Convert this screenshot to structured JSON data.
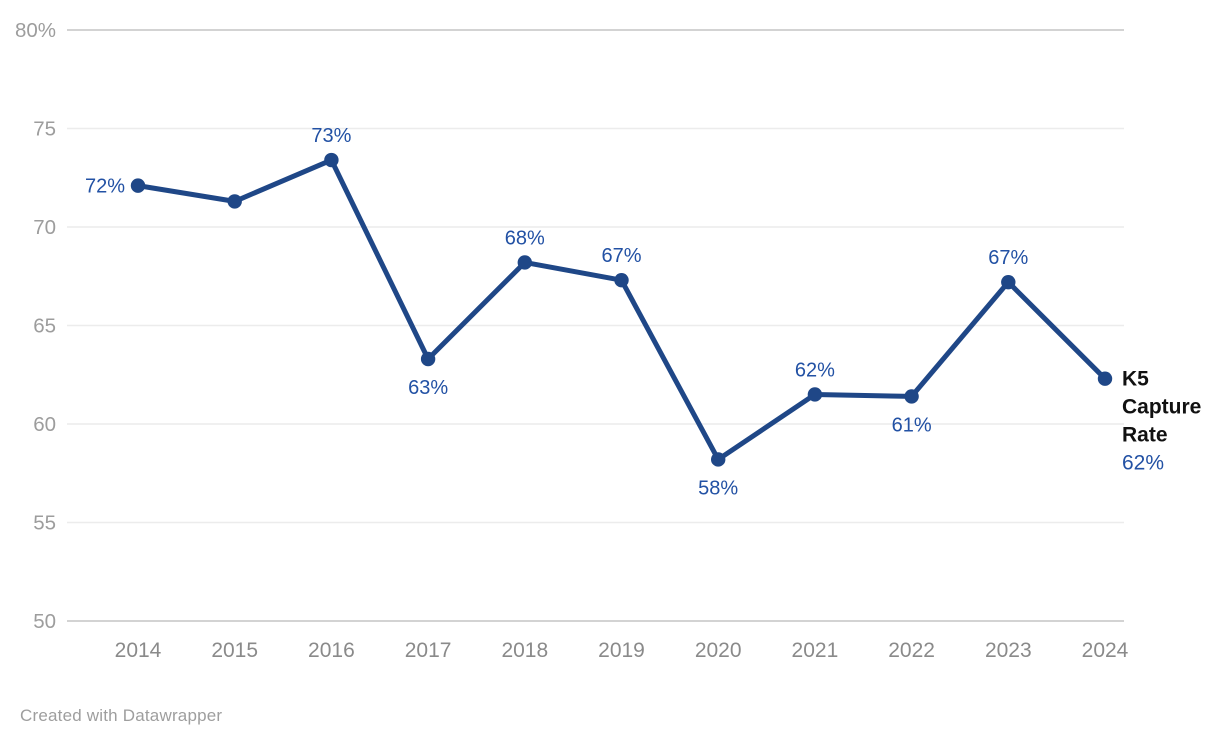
{
  "chart_data": {
    "type": "line",
    "title": "",
    "categories": [
      "2014",
      "2015",
      "2016",
      "2017",
      "2018",
      "2019",
      "2020",
      "2021",
      "2022",
      "2023",
      "2024"
    ],
    "series": [
      {
        "name": "K5 Capture Rate",
        "values": [
          72.1,
          71.3,
          73.4,
          63.3,
          68.2,
          67.3,
          58.2,
          61.5,
          61.4,
          67.2,
          62.3
        ]
      }
    ],
    "point_labels": [
      {
        "text": "72%",
        "pos": "left"
      },
      {
        "text": "",
        "pos": "none"
      },
      {
        "text": "73%",
        "pos": "above"
      },
      {
        "text": "63%",
        "pos": "below"
      },
      {
        "text": "68%",
        "pos": "above"
      },
      {
        "text": "67%",
        "pos": "above"
      },
      {
        "text": "58%",
        "pos": "below"
      },
      {
        "text": "62%",
        "pos": "above"
      },
      {
        "text": "61%",
        "pos": "below"
      },
      {
        "text": "67%",
        "pos": "above"
      },
      {
        "text": "",
        "pos": "annotation"
      }
    ],
    "y_ticks": [
      {
        "value": 80,
        "label": "80%"
      },
      {
        "value": 75,
        "label": "75"
      },
      {
        "value": 70,
        "label": "70"
      },
      {
        "value": 65,
        "label": "65"
      },
      {
        "value": 60,
        "label": "60"
      },
      {
        "value": 55,
        "label": "55"
      },
      {
        "value": 50,
        "label": "50"
      }
    ],
    "ylim": [
      50,
      80
    ],
    "grid": "horizontal",
    "legend_position": "end-of-line",
    "annotation": {
      "name_lines": [
        "K5",
        "Capture",
        "Rate"
      ],
      "value": "62%"
    },
    "colors": {
      "line": "#1f4787",
      "point": "#1f4787",
      "point_label": "#2251a4",
      "annotation_name": "#111111",
      "annotation_value": "#2251a4",
      "y_axis_text": "#9d9d9d",
      "x_axis_text": "#8a8a8a",
      "grid_inner": "#ececec",
      "grid_edge": "#d3d3d3",
      "background": "#ffffff"
    }
  },
  "footer": {
    "credit": "Created with Datawrapper"
  }
}
